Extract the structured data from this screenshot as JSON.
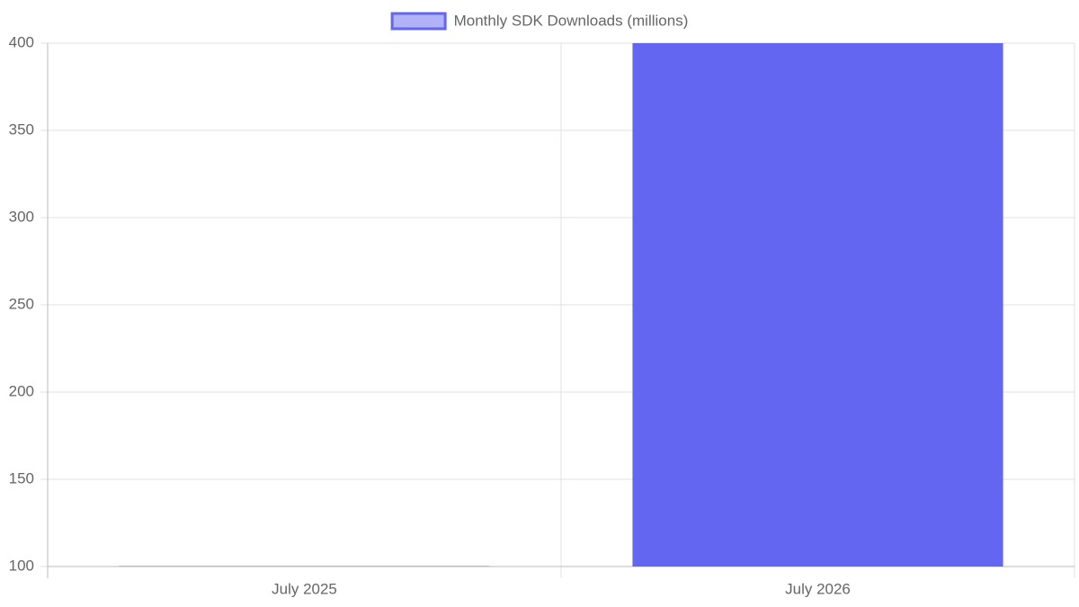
{
  "chart_data": {
    "type": "bar",
    "categories": [
      "July 2025",
      "July 2026"
    ],
    "series": [
      {
        "name": "Monthly SDK Downloads (millions)",
        "color": "#6366f1",
        "values": [
          90,
          400
        ]
      }
    ],
    "ylim": [
      100,
      400
    ],
    "yticks": [
      100,
      150,
      200,
      250,
      300,
      350,
      400
    ],
    "grid": true,
    "legend": "top"
  }
}
